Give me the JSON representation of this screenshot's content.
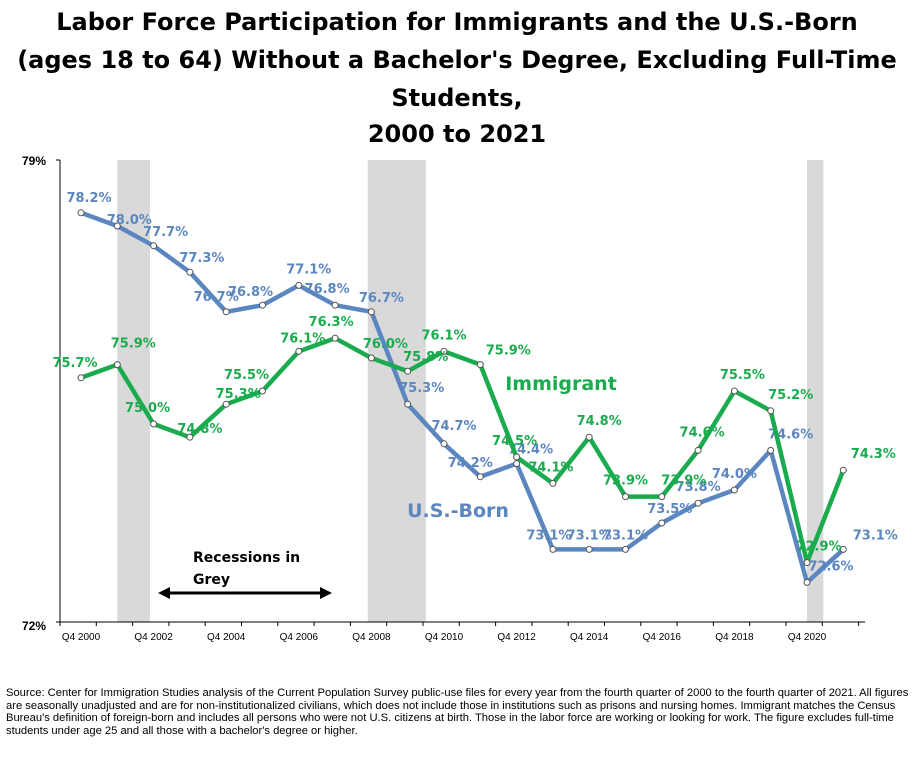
{
  "chart_data": {
    "type": "line",
    "title_lines": [
      "Labor Force Participation for Immigrants and the U.S.-Born",
      "(ages 18 to 64) Without a Bachelor's Degree, Excluding Full-Time",
      "Students,",
      "2000 to 2021"
    ],
    "x": [
      "2000",
      "2001",
      "2002",
      "2003",
      "2004",
      "2005",
      "2006",
      "2007",
      "2008",
      "2009",
      "2010",
      "2011",
      "2012",
      "2013",
      "2014",
      "2015",
      "2016",
      "2017",
      "2018",
      "2019",
      "2020",
      "2021"
    ],
    "x_tick_labels": [
      "Q4 2000",
      "Q4 2002",
      "Q4 2004",
      "Q4 2006",
      "Q4 2008",
      "Q4 2010",
      "Q4 2012",
      "Q4 2014",
      "Q4 2016",
      "Q4 2018",
      "Q4 2020"
    ],
    "ylim": [
      72,
      79
    ],
    "y_tick_labels": [
      "79%",
      "72%"
    ],
    "series": [
      {
        "name": "U.S.-Born",
        "color": "#5b86c0",
        "values": [
          78.2,
          78.0,
          77.7,
          77.3,
          76.7,
          76.8,
          77.1,
          76.8,
          76.7,
          75.3,
          74.7,
          74.2,
          74.4,
          73.1,
          73.1,
          73.1,
          73.5,
          73.8,
          74.0,
          74.6,
          72.6,
          73.1
        ],
        "labels": [
          "78.2%",
          "78.0%",
          "77.7%",
          "77.3%",
          "76.7%",
          "76.8%",
          "77.1%",
          "76.8%",
          "76.7%",
          "75.3%",
          "74.7%",
          "74.2%",
          "74.4%",
          "73.1%",
          "73.1%",
          "73.1%",
          "73.5%",
          "73.8%",
          "74.0%",
          "74.6%",
          "72.6%",
          "73.1%"
        ]
      },
      {
        "name": "Immigrant",
        "color": "#1aab4e",
        "values": [
          75.7,
          75.9,
          75.0,
          74.8,
          75.3,
          75.5,
          76.1,
          76.3,
          76.0,
          75.8,
          76.1,
          75.9,
          74.5,
          74.1,
          74.8,
          73.9,
          73.9,
          74.6,
          75.5,
          75.2,
          72.9,
          74.3
        ],
        "labels": [
          "75.7%",
          "75.9%",
          "75.0%",
          "74.8%",
          "75.3%",
          "75.5%",
          "76.1%",
          "76.3%",
          "76.0%",
          "75.8%",
          "76.1%",
          "75.9%",
          "74.5%",
          "74.1%",
          "74.8%",
          "73.9%",
          "73.9%",
          "74.6%",
          "75.5%",
          "75.2%",
          "72.9%",
          "74.3%"
        ]
      }
    ],
    "recessions": [
      [
        2001.0,
        2001.9
      ],
      [
        2007.9,
        2009.5
      ],
      [
        2020.0,
        2020.45
      ]
    ],
    "annotation": [
      "Recessions in",
      "Grey"
    ],
    "grid": false
  },
  "source_text": "Source: Center for Immigration Studies analysis of the Current Population Survey public-use files for every year from the fourth quarter of 2000 to the fourth quarter of 2021. All figures are seasonally unadjusted and are for non-institutionalized civilians, which does not include those in institutions such as prisons and nursing homes. Immigrant matches the Census Bureau's definition of foreign-born and includes all persons who were not U.S. citizens at birth. Those in the labor force are working or looking for work. The figure excludes full-time students under age 25 and all those with a bachelor's degree or higher."
}
